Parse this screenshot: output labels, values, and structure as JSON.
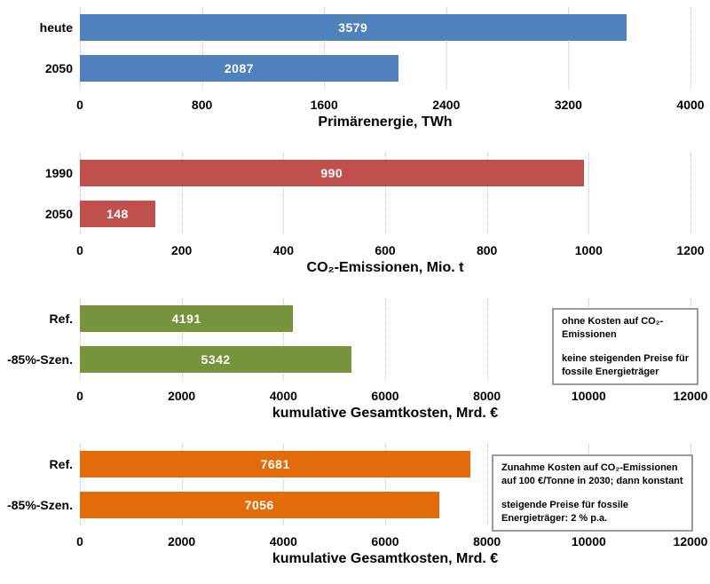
{
  "page": {
    "background": "#ffffff",
    "grid_color": "#c4c4c4",
    "value_label_color": "#ffffff"
  },
  "chart_data": [
    {
      "type": "bar",
      "orientation": "horizontal",
      "name": "primaerenergie",
      "categories": [
        "heute",
        "2050"
      ],
      "values": [
        3579,
        2087
      ],
      "value_labels": [
        "3579",
        "2087"
      ],
      "xlabel": "Primärenergie, TWh",
      "xlim": [
        0,
        4000
      ],
      "xticks": [
        0,
        800,
        1600,
        2400,
        3200,
        4000
      ],
      "bar_color": "#4F81BD",
      "grid": "vertical-dotted",
      "legend": "none",
      "note": null
    },
    {
      "type": "bar",
      "orientation": "horizontal",
      "name": "co2-emissionen",
      "categories": [
        "1990",
        "2050"
      ],
      "values": [
        990,
        148
      ],
      "value_labels": [
        "990",
        "148"
      ],
      "xlabel": "CO₂-Emissionen, Mio. t",
      "xlim": [
        0,
        1200
      ],
      "xticks": [
        0,
        200,
        400,
        600,
        800,
        1000,
        1200
      ],
      "bar_color": "#C0504D",
      "grid": "vertical-dotted",
      "legend": "none",
      "note": null
    },
    {
      "type": "bar",
      "orientation": "horizontal",
      "name": "kumulative-gesamtkosten-ohne-co2-kosten",
      "categories": [
        "Ref.",
        "-85%-Szen."
      ],
      "values": [
        4191,
        5342
      ],
      "value_labels": [
        "4191",
        "5342"
      ],
      "xlabel": "kumulative Gesamtkosten, Mrd. €",
      "xlim": [
        0,
        12000
      ],
      "xticks": [
        0,
        2000,
        4000,
        6000,
        8000,
        10000,
        12000
      ],
      "bar_color": "#77933C",
      "grid": "vertical-dotted",
      "legend": "none",
      "note": {
        "paragraphs": [
          [
            "ohne Kosten auf CO₂-",
            "Emissionen"
          ],
          [
            "keine steigenden Preise für",
            "fossile Energieträger"
          ]
        ]
      }
    },
    {
      "type": "bar",
      "orientation": "horizontal",
      "name": "kumulative-gesamtkosten-mit-co2-kosten",
      "categories": [
        "Ref.",
        "-85%-Szen."
      ],
      "values": [
        7681,
        7056
      ],
      "value_labels": [
        "7681",
        "7056"
      ],
      "xlabel": "kumulative Gesamtkosten, Mrd. €",
      "xlim": [
        0,
        12000
      ],
      "xticks": [
        0,
        2000,
        4000,
        6000,
        8000,
        10000,
        12000
      ],
      "bar_color": "#E36C0A",
      "grid": "vertical-dotted",
      "legend": "none",
      "note": {
        "paragraphs": [
          [
            "Zunahme Kosten auf CO₂-Emissionen",
            "auf 100 €/Tonne in 2030; dann konstant"
          ],
          [
            "steigende Preise für fossile",
            "Energieträger: 2 % p.a."
          ]
        ]
      }
    }
  ]
}
